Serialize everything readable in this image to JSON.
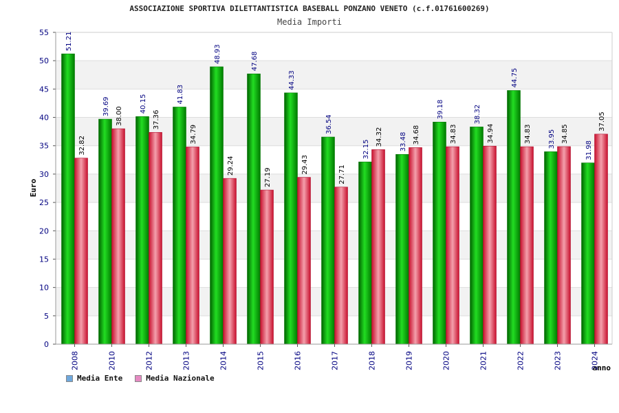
{
  "header": {
    "title": "ASSOCIAZIONE SPORTIVA DILETTANTISTICA BASEBALL PONZANO VENETO (c.f.01761600269)",
    "subtitle": "Media Importi"
  },
  "legend": {
    "items": [
      {
        "label": "Media Ente",
        "color": "#6fa8dc"
      },
      {
        "label": "Media Nazionale",
        "color": "#e58ac2"
      }
    ]
  },
  "chart_data": {
    "type": "bar",
    "title": "Media Importi",
    "xlabel": "anno",
    "ylabel": "Euro",
    "ylim": [
      0,
      55
    ],
    "yticks": [
      0,
      5,
      10,
      15,
      20,
      25,
      30,
      35,
      40,
      45,
      50,
      55
    ],
    "grid": true,
    "legend_position": "bottom-left",
    "categories": [
      "2008",
      "2010",
      "2012",
      "2013",
      "2014",
      "2015",
      "2016",
      "2017",
      "2018",
      "2019",
      "2020",
      "2021",
      "2022",
      "2023",
      "2024"
    ],
    "series": [
      {
        "name": "Media Ente",
        "color": "#00a000",
        "label_color": "#000080",
        "values": [
          51.21,
          39.69,
          40.15,
          41.83,
          48.93,
          47.68,
          44.33,
          36.54,
          32.15,
          33.48,
          39.18,
          38.32,
          44.75,
          33.95,
          31.98
        ],
        "labels": [
          "51.21",
          "39.69",
          "40.15",
          "41.83",
          "48.93",
          "47.68",
          "44.33",
          "36.54",
          "32.15",
          "33.48",
          "39.18",
          "38.32",
          "44.75",
          "33.95",
          "31.98"
        ]
      },
      {
        "name": "Media Nazionale",
        "color": "#e0203a",
        "label_color": "#000000",
        "values": [
          32.82,
          38.0,
          37.36,
          34.79,
          29.24,
          27.19,
          29.43,
          27.71,
          34.32,
          34.68,
          34.83,
          34.94,
          34.83,
          34.85,
          37.05
        ],
        "labels": [
          "32.82",
          "38.00",
          "37.36",
          "34.79",
          "29.24",
          "27.19",
          "29.43",
          "27.71",
          "34.32",
          "34.68",
          "34.83",
          "34.94",
          "34.83",
          "34.85",
          "37.05"
        ]
      }
    ]
  }
}
